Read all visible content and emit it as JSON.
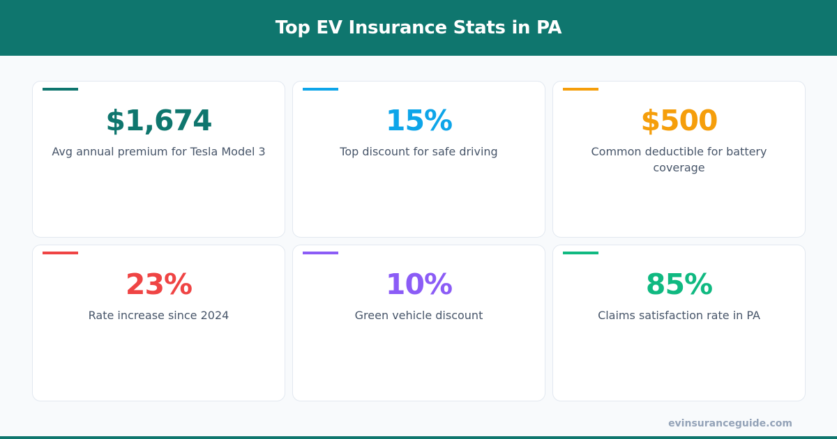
{
  "header": {
    "title": "Top EV Insurance Stats in PA"
  },
  "stats": [
    {
      "value": "$1,674",
      "label": "Avg annual premium for Tesla Model 3",
      "color": "#0f766e"
    },
    {
      "value": "15%",
      "label": "Top discount for safe driving",
      "color": "#0ea5e9"
    },
    {
      "value": "$500",
      "label": "Common deductible for battery coverage",
      "color": "#f59e0b"
    },
    {
      "value": "23%",
      "label": "Rate increase since 2024",
      "color": "#ef4444"
    },
    {
      "value": "10%",
      "label": "Green vehicle discount",
      "color": "#8b5cf6"
    },
    {
      "value": "85%",
      "label": "Claims satisfaction rate in PA",
      "color": "#10b981"
    }
  ],
  "footer": {
    "site": "evinsuranceguide.com"
  }
}
